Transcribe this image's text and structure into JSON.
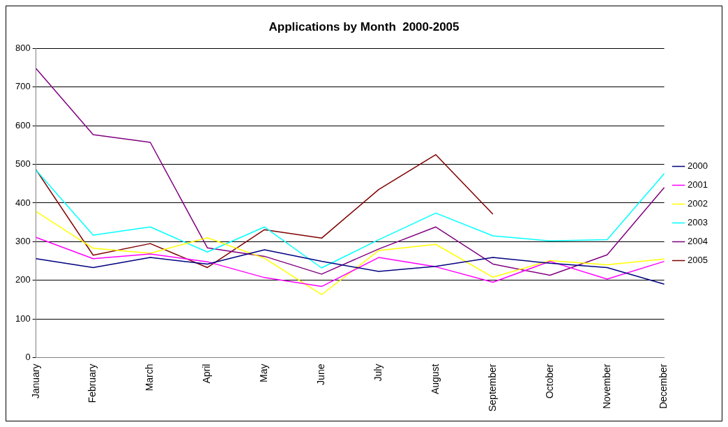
{
  "chart_data": {
    "type": "line",
    "title": "Applications by Month  2000-2005",
    "categories": [
      "January",
      "February",
      "March",
      "April",
      "May",
      "June",
      "July",
      "August",
      "September",
      "October",
      "November",
      "December"
    ],
    "series": [
      {
        "name": "2000",
        "color": "#000080",
        "values": [
          256,
          233,
          259,
          242,
          279,
          249,
          223,
          236,
          259,
          244,
          233,
          190
        ]
      },
      {
        "name": "2001",
        "color": "#ff00ff",
        "values": [
          311,
          256,
          268,
          248,
          207,
          184,
          259,
          235,
          195,
          249,
          203,
          249
        ]
      },
      {
        "name": "2002",
        "color": "#ffff00",
        "values": [
          378,
          283,
          270,
          310,
          257,
          163,
          277,
          293,
          208,
          251,
          240,
          255
        ]
      },
      {
        "name": "2003",
        "color": "#00ffff",
        "values": [
          485,
          317,
          338,
          273,
          338,
          232,
          305,
          374,
          315,
          302,
          305,
          476
        ]
      },
      {
        "name": "2004",
        "color": "#800080",
        "values": [
          748,
          577,
          557,
          284,
          262,
          216,
          281,
          338,
          242,
          213,
          266,
          440
        ]
      },
      {
        "name": "2005",
        "color": "#800000",
        "values": [
          486,
          265,
          295,
          233,
          331,
          309,
          435,
          525,
          371,
          null,
          null,
          null
        ]
      }
    ],
    "ylim": [
      0,
      800
    ],
    "yticks": [
      0,
      100,
      200,
      300,
      400,
      500,
      600,
      700,
      800
    ],
    "grid": "y",
    "legend": "right",
    "marker": "none",
    "line_style": "solid"
  }
}
